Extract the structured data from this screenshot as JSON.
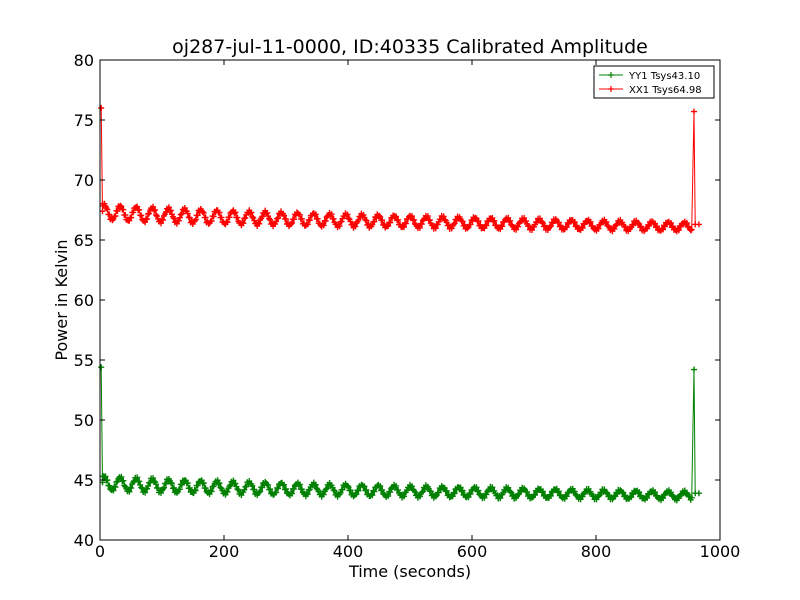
{
  "chart_data": {
    "type": "line",
    "title": "oj287-jul-11-0000, ID:40335 Calibrated Amplitude",
    "xlabel": "Time (seconds)",
    "ylabel": "Power in Kelvin",
    "xlim": [
      0,
      1000
    ],
    "ylim": [
      40,
      80
    ],
    "xticks": [
      0,
      200,
      400,
      600,
      800,
      1000
    ],
    "yticks": [
      40,
      45,
      50,
      55,
      60,
      65,
      70,
      75,
      80
    ],
    "grid": false,
    "legend_position": "top-right",
    "series": [
      {
        "name": "YY1 Tsys43.10",
        "color": "#008000",
        "spike_start": {
          "x": 2,
          "y": 54.4
        },
        "spike_end": {
          "x": 958,
          "y": 54.2
        },
        "baseline_start": 44.8,
        "baseline_end": 43.7,
        "oscillation_amplitude": 0.55,
        "oscillation_period_s": 26,
        "x_range": [
          4,
          966
        ]
      },
      {
        "name": "XX1 Tsys64.98",
        "color": "#ff0000",
        "spike_start": {
          "x": 2,
          "y": 76.0
        },
        "spike_end": {
          "x": 958,
          "y": 75.7
        },
        "baseline_start": 67.4,
        "baseline_end": 66.1,
        "oscillation_amplitude": 0.6,
        "oscillation_period_s": 26,
        "x_range": [
          4,
          966
        ]
      }
    ]
  }
}
